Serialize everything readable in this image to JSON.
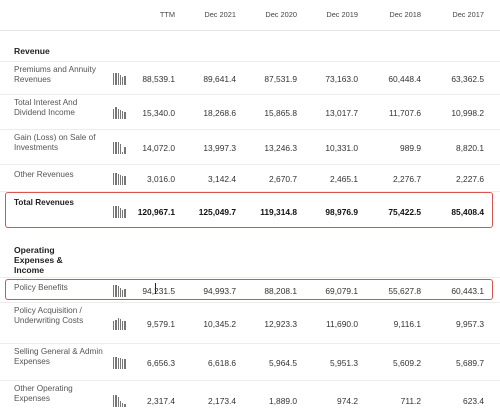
{
  "columns": [
    "TTM",
    "Dec 2021",
    "Dec 2020",
    "Dec 2019",
    "Dec 2018",
    "Dec 2017"
  ],
  "sections": [
    {
      "title": "Revenue",
      "rows": [
        {
          "label": "Premiums and Annuity Revenues",
          "values": [
            "88,539.1",
            "89,641.4",
            "87,531.9",
            "73,163.0",
            "60,448.4",
            "63,362.5"
          ]
        },
        {
          "label": "Total Interest And Dividend Income",
          "values": [
            "15,340.0",
            "18,268.6",
            "15,865.8",
            "13,017.7",
            "11,707.6",
            "10,998.2"
          ]
        },
        {
          "label": "Gain (Loss) on Sale of Investments",
          "values": [
            "14,072.0",
            "13,997.3",
            "13,246.3",
            "10,331.0",
            "989.9",
            "8,820.1"
          ]
        },
        {
          "label": "Other Revenues",
          "values": [
            "3,016.0",
            "3,142.4",
            "2,670.7",
            "2,465.1",
            "2,276.7",
            "2,227.6"
          ]
        },
        {
          "label": "Total Revenues",
          "values": [
            "120,967.1",
            "125,049.7",
            "119,314.8",
            "98,976.9",
            "75,422.5",
            "85,408.4"
          ],
          "bold": true,
          "highlighted": true
        }
      ]
    },
    {
      "title": "Operating Expenses & Income",
      "rows": [
        {
          "label": "Policy Benefits",
          "values": [
            "94,231.5",
            "94,993.7",
            "88,208.1",
            "69,079.1",
            "55,627.8",
            "60,443.1"
          ],
          "highlighted": true
        },
        {
          "label": "Policy Acquisition / Underwriting Costs",
          "values": [
            "9,579.1",
            "10,345.2",
            "12,923.3",
            "11,690.0",
            "9,116.1",
            "9,957.3"
          ]
        },
        {
          "label": "Selling General & Admin Expenses",
          "values": [
            "6,656.3",
            "6,618.6",
            "5,964.5",
            "5,951.3",
            "5,609.2",
            "5,689.7"
          ]
        },
        {
          "label": "Other Operating Expenses",
          "values": [
            "2,317.4",
            "2,173.4",
            "1,889.0",
            "974.2",
            "711.2",
            "623.4"
          ]
        }
      ]
    }
  ],
  "highlight_color": "#d9534f"
}
